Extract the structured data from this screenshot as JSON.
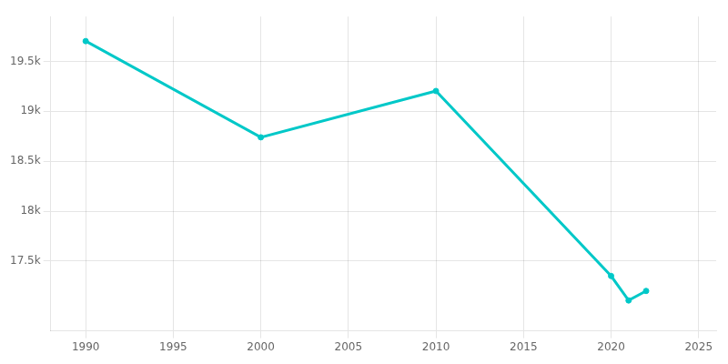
{
  "chart_data": {
    "type": "line",
    "x": [
      1990,
      2000,
      2010,
      2020,
      2021,
      2022
    ],
    "values": [
      19704,
      18740,
      19204,
      17350,
      17105,
      17200
    ],
    "color": "#00c8c8",
    "marker": "circle",
    "xlim": [
      1988,
      2026
    ],
    "ylim": [
      16800,
      19950
    ],
    "xticks": [
      1990,
      1995,
      2000,
      2005,
      2010,
      2015,
      2020,
      2025
    ],
    "yticks": [
      {
        "value": 17500,
        "label": "17.5k"
      },
      {
        "value": 18000,
        "label": "18k"
      },
      {
        "value": 18500,
        "label": "18.5k"
      },
      {
        "value": 19000,
        "label": "19k"
      },
      {
        "value": 19500,
        "label": "19.5k"
      }
    ],
    "grid": true
  }
}
